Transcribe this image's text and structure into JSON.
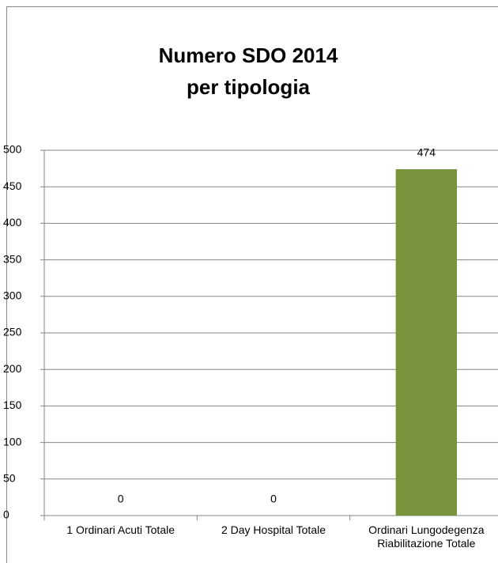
{
  "chart_data": {
    "type": "bar",
    "title": [
      "Numero SDO 2014",
      "per tipologia"
    ],
    "categories": [
      "1 Ordinari Acuti Totale",
      "2 Day Hospital Totale",
      "Ordinari Lungodegenza Riabilitazione Totale"
    ],
    "values": [
      0,
      0,
      474
    ],
    "color": "#77933c",
    "ylim": [
      0,
      500
    ],
    "yticks": [
      0,
      50,
      100,
      150,
      200,
      250,
      300,
      350,
      400,
      450,
      500
    ],
    "grid": true
  }
}
